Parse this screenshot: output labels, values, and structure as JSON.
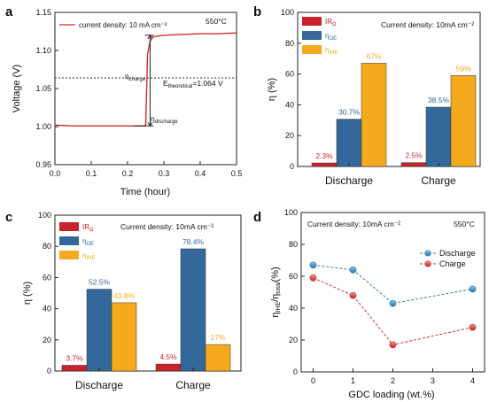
{
  "panels": {
    "a": {
      "letter": "a",
      "temp": "550°C",
      "xlabel": "Time (hour)",
      "ylabel": "Voltage (V)",
      "legend": "current density: 10 mA cm⁻²",
      "eta_charge": "η",
      "eta_charge_sub": "charge",
      "eta_discharge": "η",
      "eta_discharge_sub": "discharge",
      "etheo": "E",
      "etheo_sub": "theoretical",
      "etheo_val": "=1.064 V"
    },
    "b": {
      "letter": "b",
      "annotation": "Current density: 10mA cm⁻²",
      "ylabel": "η (%)"
    },
    "c": {
      "letter": "c",
      "annotation": "Current density:  10mA cm⁻²",
      "ylabel": "η (%)"
    },
    "d": {
      "letter": "d",
      "annotation": "Current density: 10mA cm⁻²",
      "temp": "550°C",
      "xlabel": "GDC loading (wt.%)",
      "ylabel_main": "η",
      "ylabel_sub1": "IHE",
      "ylabel_mid": "/η",
      "ylabel_sub2": "total",
      "ylabel_end": "(%)"
    }
  },
  "chart_data": [
    {
      "type": "line",
      "panel": "a",
      "xlim": [
        0.0,
        0.5
      ],
      "ylim": [
        0.95,
        1.15
      ],
      "xticks": [
        "0.0",
        "0.1",
        "0.2",
        "0.3",
        "0.4",
        "0.5"
      ],
      "yticks": [
        "0.95",
        "1.00",
        "1.05",
        "1.10",
        "1.15"
      ],
      "series": [
        {
          "name": "current density: 10 mA cm⁻²",
          "color": "#d42a2a",
          "points": [
            [
              0.0,
              1.002
            ],
            [
              0.05,
              1.001
            ],
            [
              0.1,
              1.001
            ],
            [
              0.15,
              1.001
            ],
            [
              0.2,
              1.001
            ],
            [
              0.245,
              1.001
            ],
            [
              0.25,
              1.002
            ],
            [
              0.255,
              1.095
            ],
            [
              0.262,
              1.112
            ],
            [
              0.27,
              1.118
            ],
            [
              0.3,
              1.12
            ],
            [
              0.35,
              1.121
            ],
            [
              0.4,
              1.122
            ],
            [
              0.45,
              1.122
            ],
            [
              0.5,
              1.123
            ]
          ]
        }
      ],
      "reference_line": {
        "y": 1.064,
        "style": "dotted"
      },
      "eta_charge_span": [
        1.07,
        1.12
      ],
      "eta_discharge_span": [
        1.001,
        1.07
      ],
      "arrow_x": 0.262
    },
    {
      "type": "bar",
      "panel": "b",
      "ylim": [
        0,
        100
      ],
      "yticks": [
        "0",
        "20",
        "40",
        "60",
        "80",
        "100"
      ],
      "categories": [
        "Discharge",
        "Charge"
      ],
      "series": [
        {
          "name": "IR",
          "name_sub": "Ω",
          "color": "#c8232a",
          "values": [
            2.3,
            2.5
          ],
          "labels": [
            "2.3%",
            "2.5%"
          ]
        },
        {
          "name": "η",
          "name_sub": "OE",
          "color": "#34679a",
          "values": [
            30.7,
            38.5
          ],
          "labels": [
            "30.7%",
            "38.5%"
          ]
        },
        {
          "name": "η",
          "name_sub": "IHE",
          "color": "#f5aa1e",
          "values": [
            67,
            59
          ],
          "labels": [
            "67%",
            "59%"
          ]
        }
      ]
    },
    {
      "type": "bar",
      "panel": "c",
      "ylim": [
        0,
        100
      ],
      "yticks": [
        "0",
        "20",
        "40",
        "60",
        "80",
        "100"
      ],
      "categories": [
        "Discharge",
        "Charge"
      ],
      "series": [
        {
          "name": "IR",
          "name_sub": "Ω",
          "color": "#c8232a",
          "values": [
            3.7,
            4.5
          ],
          "labels": [
            "3.7%",
            "4.5%"
          ]
        },
        {
          "name": "η",
          "name_sub": "OE",
          "color": "#34679a",
          "values": [
            52.5,
            78.4
          ],
          "labels": [
            "52.5%",
            "78.4%"
          ]
        },
        {
          "name": "η",
          "name_sub": "IHE",
          "color": "#f5aa1e",
          "values": [
            43.8,
            17
          ],
          "labels": [
            "43.8%",
            "17%"
          ]
        }
      ]
    },
    {
      "type": "line",
      "panel": "d",
      "xlim": [
        -0.3,
        4.3
      ],
      "ylim": [
        0,
        100
      ],
      "xticks": [
        "0",
        "1",
        "2",
        "3",
        "4"
      ],
      "yticks": [
        "0",
        "20",
        "40",
        "60",
        "80",
        "100"
      ],
      "series": [
        {
          "name": "Discharge",
          "color": "#2e7fb0",
          "x": [
            0,
            1,
            2,
            4
          ],
          "values": [
            67,
            64,
            43,
            52
          ]
        },
        {
          "name": "Charge",
          "color": "#d42a2a",
          "x": [
            0,
            1,
            2,
            4
          ],
          "values": [
            59,
            48,
            17,
            28
          ]
        }
      ]
    }
  ]
}
